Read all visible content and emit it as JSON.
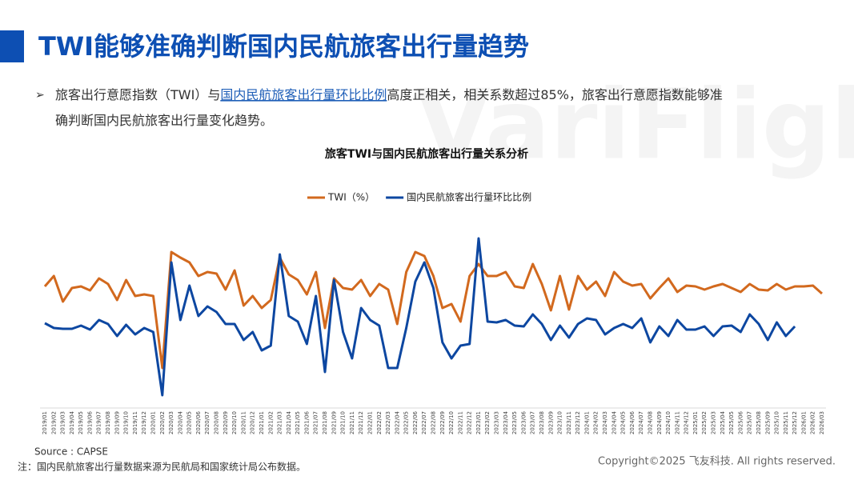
{
  "page": {
    "header": {
      "title": "TWI能够准确判断国内民航旅客出行量趋势"
    },
    "bullet": {
      "pre": "旅客出行意愿指数（TWI）与",
      "link": "国内民航旅客出行量环比比例",
      "post": "高度正相关，相关系数超过85%，旅客出行意愿指数能够准确判断国内民航旅客出行量变化趋势。"
    },
    "watermark": "VariFlight",
    "source": "Source : CAPSE",
    "note": "注：国内民航旅客出行量数据来源为民航局和国家统计局公布数据。",
    "copyright": "Copyright©2025 飞友科技. All rights reserved."
  },
  "chart_data": {
    "type": "line",
    "title": "旅客TWI与国内民航旅客出行量关系分析",
    "categories": [
      "2019/01",
      "2019/02",
      "2019/03",
      "2019/04",
      "2019/05",
      "2019/06",
      "2019/07",
      "2019/08",
      "2019/09",
      "2019/10",
      "2019/11",
      "2019/12",
      "2020/01",
      "2020/02",
      "2020/03",
      "2020/04",
      "2020/05",
      "2020/06",
      "2020/07",
      "2020/08",
      "2020/09",
      "2020/10",
      "2020/11",
      "2020/12",
      "2021/01",
      "2021/02",
      "2021/03",
      "2021/04",
      "2021/05",
      "2021/06",
      "2021/07",
      "2021/08",
      "2021/09",
      "2021/10",
      "2021/11",
      "2021/12",
      "2022/01",
      "2022/02",
      "2022/03",
      "2022/04",
      "2022/05",
      "2022/06",
      "2022/07",
      "2022/08",
      "2022/09",
      "2022/10",
      "2022/11",
      "2022/12",
      "2023/01",
      "2023/02",
      "2023/03",
      "2023/04",
      "2023/05",
      "2023/06",
      "2023/07",
      "2023/08",
      "2023/09",
      "2023/10",
      "2023/11",
      "2023/12",
      "2024/01",
      "2024/02",
      "2024/03",
      "2024/04",
      "2024/05",
      "2024/06",
      "2024/07",
      "2024/08",
      "2024/09",
      "2024/10",
      "2024/11",
      "2024/12",
      "2025/01",
      "2025/02",
      "2025/03",
      "2025/04",
      "2025/05",
      "2025/06",
      "2025/07",
      "2025/08",
      "2025/09",
      "2025/10",
      "2025/11",
      "2025/12",
      "2026/01",
      "2026/02",
      "2026/03"
    ],
    "series": [
      {
        "name": "TWI（%）",
        "color": "#d2691e",
        "values": [
          152,
          165,
          133,
          150,
          152,
          147,
          162,
          155,
          135,
          160,
          140,
          142,
          140,
          50,
          195,
          188,
          182,
          165,
          170,
          168,
          148,
          172,
          128,
          140,
          125,
          135,
          188,
          167,
          160,
          142,
          170,
          100,
          162,
          150,
          148,
          160,
          140,
          155,
          148,
          105,
          170,
          195,
          190,
          165,
          125,
          130,
          108,
          165,
          180,
          165,
          165,
          170,
          152,
          150,
          180,
          155,
          122,
          165,
          123,
          165,
          148,
          158,
          140,
          170,
          158,
          153,
          155,
          137,
          150,
          162,
          145,
          153,
          152,
          148,
          152,
          155,
          150,
          145,
          155,
          148,
          147,
          155,
          148,
          152,
          152,
          153,
          143
        ]
      },
      {
        "name": "国内民航旅客出行量环比比例",
        "color": "#0d47a1",
        "values": [
          106,
          100,
          99,
          99,
          103,
          98,
          110,
          105,
          90,
          104,
          92,
          100,
          95,
          16,
          182,
          110,
          153,
          115,
          127,
          120,
          105,
          105,
          85,
          95,
          72,
          78,
          192,
          115,
          108,
          80,
          140,
          45,
          160,
          95,
          62,
          125,
          110,
          103,
          50,
          50,
          100,
          158,
          182,
          150,
          82,
          62,
          78,
          80,
          212,
          108,
          107,
          110,
          103,
          102,
          117,
          105,
          85,
          103,
          88,
          105,
          112,
          110,
          92,
          100,
          105,
          100,
          112,
          82,
          102,
          90,
          110,
          98,
          98,
          102,
          90,
          102,
          103,
          95,
          117,
          105,
          85,
          107,
          90,
          102,
          null,
          null,
          null
        ]
      }
    ],
    "ylim": [
      0,
      225
    ],
    "legend": "top"
  }
}
